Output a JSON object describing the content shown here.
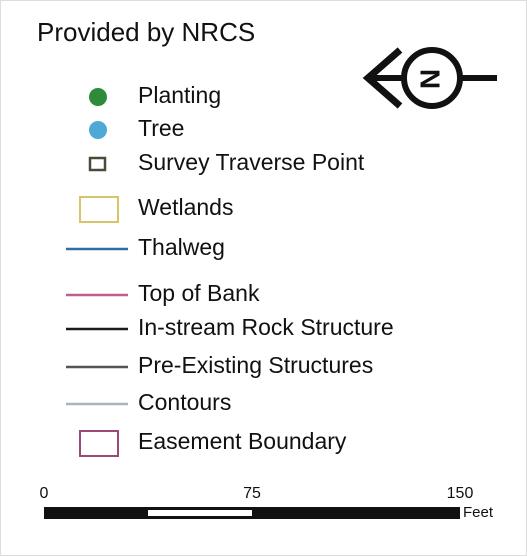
{
  "title": "Provided by NRCS",
  "north_arrow": {
    "label": "N"
  },
  "legend": {
    "items": [
      {
        "name": "Planting",
        "symbol": "dot",
        "color": "#2e8b3a"
      },
      {
        "name": "Tree",
        "symbol": "dot",
        "color": "#4fa9d6"
      },
      {
        "name": "Survey Traverse Point",
        "symbol": "square",
        "color": "#4a4a3a"
      },
      {
        "name": "Wetlands",
        "symbol": "rect",
        "color": "#d8c46a"
      },
      {
        "name": "Thalweg",
        "symbol": "line",
        "color": "#2f6ea3"
      },
      {
        "name": "Top of Bank",
        "symbol": "line",
        "color": "#c0608a"
      },
      {
        "name": "In-stream Rock Structure",
        "symbol": "line",
        "color": "#1a1a1a"
      },
      {
        "name": "Pre-Existing Structures",
        "symbol": "line",
        "color": "#555555"
      },
      {
        "name": "Contours",
        "symbol": "line",
        "color": "#a8b4bc"
      },
      {
        "name": "Easement Boundary",
        "symbol": "rect",
        "color": "#9a4a78"
      }
    ]
  },
  "scale_bar": {
    "ticks": [
      0,
      75,
      150
    ],
    "unit": "Feet"
  }
}
